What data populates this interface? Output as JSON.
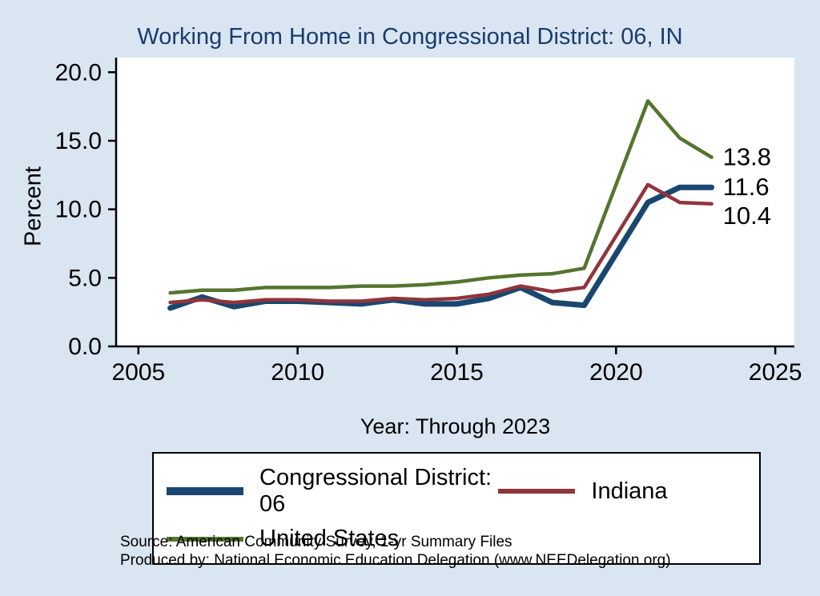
{
  "title": "Working From Home in Congressional District: 06, IN",
  "axes": {
    "y_label": "Percent",
    "x_label": "Year: Through 2023",
    "y_ticks": [
      "0.0",
      "5.0",
      "10.0",
      "15.0",
      "20.0"
    ],
    "y_tick_values": [
      0,
      5,
      10,
      15,
      20
    ],
    "x_ticks": [
      "2005",
      "2010",
      "2015",
      "2020",
      "2025"
    ],
    "x_tick_values": [
      2005,
      2010,
      2015,
      2020,
      2025
    ]
  },
  "chart_data": {
    "type": "line",
    "title": "Working From Home in Congressional District: 06, IN",
    "xlabel": "Year: Through 2023",
    "ylabel": "Percent",
    "xlim": [
      2004.3,
      2025.6
    ],
    "ylim": [
      0,
      20.6
    ],
    "grid": false,
    "legend_position": "bottom",
    "x": [
      2006,
      2007,
      2008,
      2009,
      2010,
      2011,
      2012,
      2013,
      2014,
      2015,
      2016,
      2017,
      2018,
      2019,
      2021,
      2022,
      2023
    ],
    "series": [
      {
        "name": "Congressional District: 06",
        "color": "#1a476f",
        "line_width": 7,
        "end_label": "11.6",
        "values": [
          2.8,
          3.6,
          2.9,
          3.3,
          3.3,
          3.2,
          3.1,
          3.4,
          3.1,
          3.1,
          3.5,
          4.3,
          3.2,
          3.0,
          10.5,
          11.6,
          11.6
        ]
      },
      {
        "name": "Indiana",
        "color": "#90353b",
        "line_width": 4.5,
        "end_label": "10.4",
        "values": [
          3.2,
          3.4,
          3.2,
          3.4,
          3.4,
          3.3,
          3.3,
          3.5,
          3.4,
          3.5,
          3.8,
          4.4,
          4.0,
          4.3,
          11.8,
          10.5,
          10.4
        ]
      },
      {
        "name": "United States",
        "color": "#55752f",
        "line_width": 4.5,
        "end_label": "13.8",
        "values": [
          3.9,
          4.1,
          4.1,
          4.3,
          4.3,
          4.3,
          4.4,
          4.4,
          4.5,
          4.7,
          5.0,
          5.2,
          5.3,
          5.7,
          17.9,
          15.2,
          13.8
        ]
      }
    ]
  },
  "footer": {
    "source_line1": "Source: American Community Survey, 1-yr Summary Files",
    "source_line2": "Produced by: National Economic Education Delegation (www.NEEDelegation.org)"
  }
}
